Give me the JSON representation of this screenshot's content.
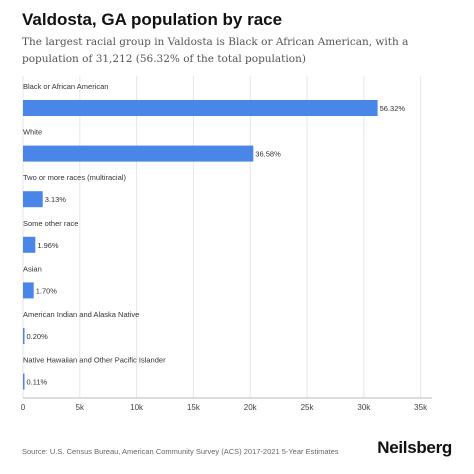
{
  "title": "Valdosta, GA population by race",
  "subtitle": "The largest racial group in Valdosta is Black or African American, with a population of 31,212 (56.32% of the total population)",
  "source": "Source: U.S. Census Bureau, American Community Survey (ACS) 2017-2021 5-Year Estimates",
  "brand": "Neilsberg",
  "colors": {
    "bar": "#4a86e8",
    "grid": "#e6e6e6",
    "axis": "#bbbbbb",
    "text": "#333333"
  },
  "chart_data": {
    "type": "bar",
    "orientation": "horizontal",
    "categories": [
      "Black or African American",
      "White",
      "Two or more races (multiracial)",
      "Some other race",
      "Asian",
      "American Indian and Alaska Native",
      "Native Hawaiian and Other Pacific Islander"
    ],
    "values": [
      31212,
      20272,
      1735,
      1086,
      942,
      111,
      61
    ],
    "data_labels": [
      "56.32%",
      "36.58%",
      "3.13%",
      "1.96%",
      "1.70%",
      "0.20%",
      "0.11%"
    ],
    "xticks": [
      0,
      5000,
      10000,
      15000,
      20000,
      25000,
      30000,
      35000
    ],
    "xtick_labels": [
      "0",
      "5k",
      "10k",
      "15k",
      "20k",
      "25k",
      "30k",
      "35k"
    ],
    "xlim": [
      0,
      36000
    ],
    "grid": true,
    "legend": "none"
  }
}
